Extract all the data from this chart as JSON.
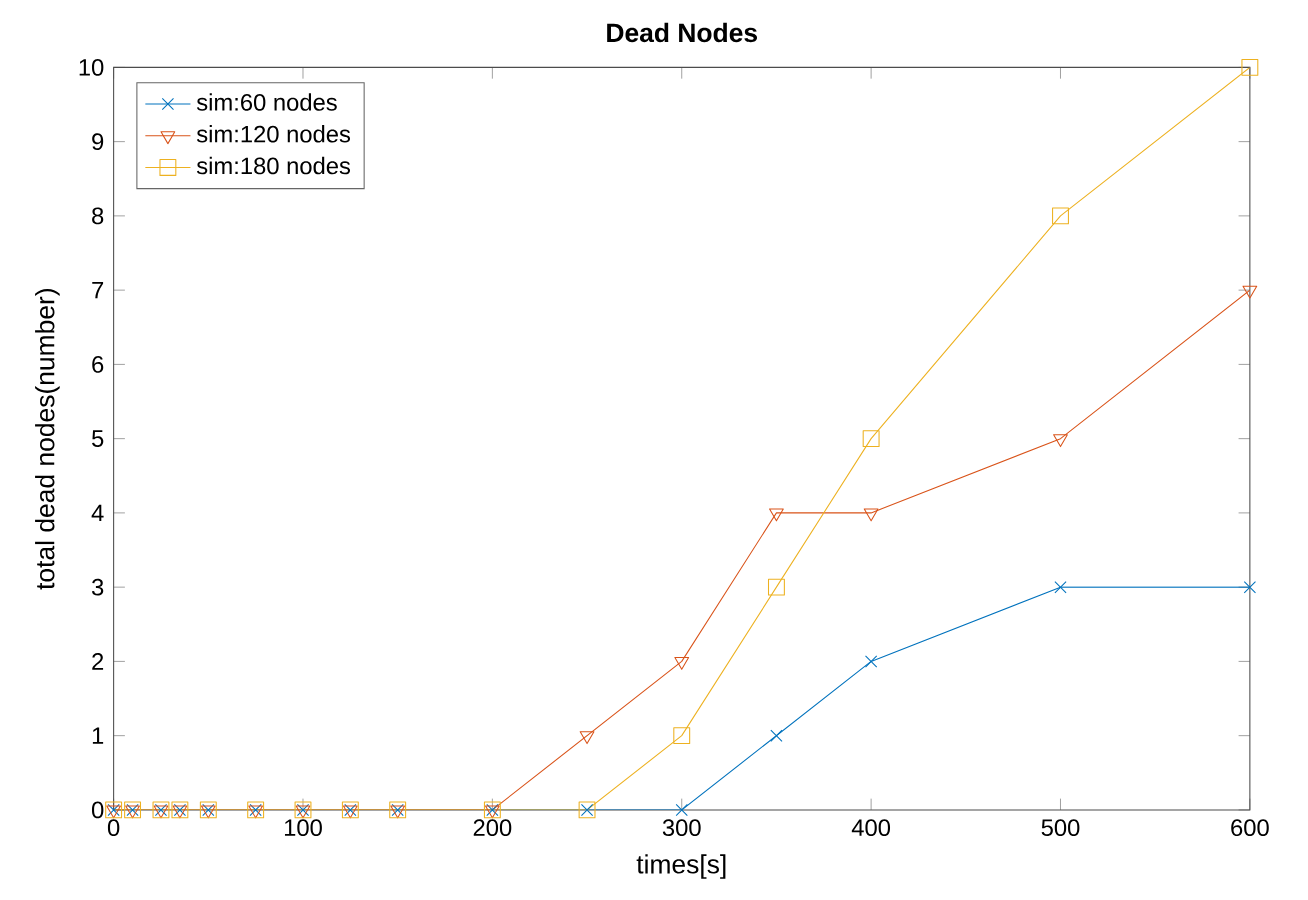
{
  "chart_data": {
    "type": "line",
    "title": "Dead Nodes",
    "xlabel": "times[s]",
    "ylabel": "total dead nodes(number)",
    "x": [
      0,
      10,
      25,
      35,
      50,
      75,
      100,
      125,
      150,
      200,
      250,
      300,
      350,
      400,
      500,
      600
    ],
    "series": [
      {
        "name": "sim:60 nodes",
        "color": "#0072bd",
        "marker": "cross",
        "values": [
          0,
          0,
          0,
          0,
          0,
          0,
          0,
          0,
          0,
          0,
          0,
          0,
          1,
          2,
          3,
          3
        ]
      },
      {
        "name": "sim:120 nodes",
        "color": "#d95319",
        "marker": "triangle",
        "values": [
          0,
          0,
          0,
          0,
          0,
          0,
          0,
          0,
          0,
          0,
          1,
          2,
          4,
          4,
          5,
          7
        ]
      },
      {
        "name": "sim:180 nodes",
        "color": "#edb120",
        "marker": "square",
        "values": [
          0,
          0,
          0,
          0,
          0,
          0,
          0,
          0,
          0,
          0,
          0,
          1,
          3,
          5,
          8,
          10
        ]
      }
    ],
    "xlim": [
      0,
      600
    ],
    "ylim": [
      0,
      10
    ],
    "xticks": [
      0,
      100,
      200,
      300,
      400,
      500,
      600
    ],
    "yticks": [
      0,
      1,
      2,
      3,
      4,
      5,
      6,
      7,
      8,
      9,
      10
    ],
    "legend": "top left",
    "grid": false,
    "line_style": "solid"
  }
}
